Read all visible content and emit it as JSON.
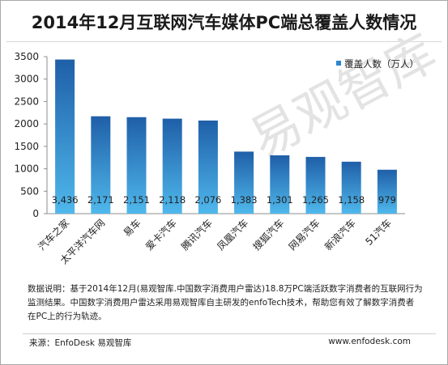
{
  "title": "2014年12月互联网汽车媒体PC端总覆盖人数情况",
  "watermark": "易观智库",
  "note": {
    "line1": "数据说明：基于2014年12月(易观智库.中国数字消费用户雷达)18.8万PC端活跃数字消费者的互联网行为",
    "line2": "监测结果。中国数字消费用户雷达采用易观智库自主研发的enfoTech技术，帮助您有效了解数字消费者",
    "line3": "在PC上的行为轨迹。"
  },
  "source": "来源：EnfoDesk 易观智库",
  "website": "www.enfodesk.com",
  "colors": {
    "bar_top": "#1f5fa8",
    "bar_bottom": "#4fb8ec",
    "legend_swatch": "#2e86cf",
    "axis": "#8c8c8c"
  },
  "chart_data": {
    "type": "bar",
    "title": "2014年12月互联网汽车媒体PC端总覆盖人数情况",
    "categories": [
      "汽车之家",
      "太平洋汽车网",
      "易车",
      "爱卡汽车",
      "腾讯汽车",
      "凤凰汽车",
      "搜狐汽车",
      "网易汽车",
      "新浪汽车",
      "51汽车"
    ],
    "series": [
      {
        "name": "覆盖人数（万人）",
        "values": [
          3436,
          2171,
          2151,
          2118,
          2076,
          1383,
          1301,
          1265,
          1158,
          979
        ]
      }
    ],
    "value_labels": [
      "3,436",
      "2,171",
      "2,151",
      "2,118",
      "2,076",
      "1,383",
      "1,301",
      "1,265",
      "1,158",
      "979"
    ],
    "ylim": [
      0,
      3500
    ],
    "yticks": [
      0,
      500,
      1000,
      1500,
      2000,
      2500,
      3000,
      3500
    ],
    "legend": "top-right",
    "grid": false
  }
}
